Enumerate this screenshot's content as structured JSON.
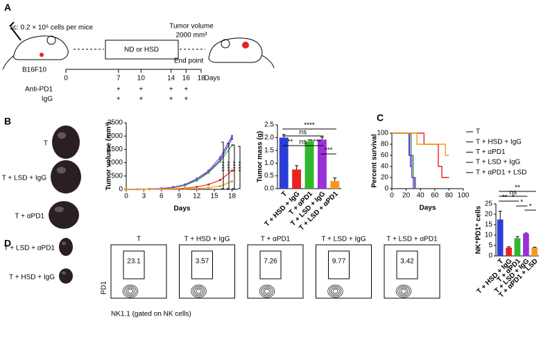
{
  "panel_a": {
    "label": "A",
    "injection": "sc: 0.2 × 10⁶ cells per mice",
    "cell_line": "B16F10",
    "diet": "ND or HSD",
    "endpoint_lines": [
      "Tumor volume",
      "2000 mm³"
    ],
    "endpoint": "End point",
    "timeline": {
      "days": [
        0,
        7,
        10,
        14,
        16,
        18
      ],
      "unit": "Days"
    },
    "treatments": [
      {
        "name": "Anti-PD1",
        "marks": [
          "+",
          "+",
          "+",
          "+"
        ]
      },
      {
        "name": "IgG",
        "marks": [
          "+",
          "+",
          "+",
          "+"
        ]
      }
    ]
  },
  "panel_b": {
    "label": "B",
    "samples": [
      "T",
      "T + LSD + IgG",
      "T + αPD1",
      "T + LSD + αPD1",
      "T + HSD + IgG"
    ]
  },
  "panel_c": {
    "label": "C"
  },
  "panel_d": {
    "label": "D",
    "y_label": "PD1",
    "x_label": "NK1.1 (gated on NK cells)",
    "plots": [
      {
        "title": "T",
        "gate": 23.1
      },
      {
        "title": "T + HSD + IgG",
        "gate": 3.57
      },
      {
        "title": "T + αPD1",
        "gate": 7.26
      },
      {
        "title": "T + LSD + IgG",
        "gate": 9.77
      },
      {
        "title": "T + LSD + αPD1",
        "gate": 3.42
      }
    ]
  },
  "chart_data": [
    {
      "type": "line",
      "y_label": "Tumor volume (mm³)",
      "x_label": "Days",
      "x": [
        0,
        2,
        4,
        6,
        8,
        10,
        12,
        14,
        16,
        18
      ],
      "xlim": [
        0,
        19
      ],
      "xticks": [
        0,
        3,
        6,
        9,
        12,
        15,
        18
      ],
      "ylim": [
        0,
        2500
      ],
      "yticks": [
        0,
        500,
        1000,
        1500,
        2000,
        2500
      ],
      "series": [
        {
          "color": "#2a3fd8",
          "values": [
            0,
            0,
            10,
            30,
            70,
            160,
            350,
            650,
            1100,
            1900
          ]
        },
        {
          "color": "#e8231f",
          "values": [
            0,
            0,
            5,
            10,
            20,
            40,
            90,
            180,
            350,
            700
          ]
        },
        {
          "color": "#2db82d",
          "values": [
            0,
            0,
            8,
            25,
            60,
            150,
            330,
            620,
            1050,
            1650
          ]
        },
        {
          "color": "#9b30d9",
          "values": [
            0,
            0,
            10,
            30,
            80,
            180,
            400,
            700,
            1200,
            2000
          ]
        },
        {
          "color": "#f39a1e",
          "values": [
            0,
            0,
            3,
            5,
            10,
            15,
            30,
            60,
            120,
            300
          ]
        }
      ],
      "annotations": [
        "****",
        "****",
        "****",
        "****"
      ]
    },
    {
      "type": "bar",
      "y_label": "Tumor mass (g)",
      "categories": [
        "T",
        "T + HSD + IgG",
        "T + αPD1",
        "T + LSD + IgG",
        "T + LSD + αPD1"
      ],
      "values": [
        2.0,
        0.75,
        1.85,
        1.92,
        0.3
      ],
      "errors": [
        0.12,
        0.15,
        0.06,
        0.1,
        0.12
      ],
      "colors": [
        "#2a3fd8",
        "#e8231f",
        "#2db82d",
        "#9b30d9",
        "#f39a1e"
      ],
      "ylim": [
        0,
        2.5
      ],
      "yticks": [
        {
          "value": 0,
          "label": "0.0"
        },
        0.5,
        {
          "value": 1,
          "label": "1.0"
        },
        1.5,
        {
          "value": 2,
          "label": "2.0"
        },
        2.5
      ],
      "annotations": [
        "****",
        "ns",
        "**",
        "ns",
        "****",
        "***"
      ]
    },
    {
      "type": "step",
      "y_label": "Percent survival",
      "x_label": "Days",
      "xlim": [
        0,
        100
      ],
      "xticks": [
        0,
        20,
        40,
        60,
        80,
        100
      ],
      "ylim": [
        0,
        100
      ],
      "yticks": [
        0,
        20,
        40,
        60,
        80,
        100
      ],
      "legend": "right",
      "series": [
        {
          "name": "T",
          "color": "#2a3fd8",
          "x": [
            0,
            24,
            26,
            28,
            30
          ],
          "values": [
            100,
            60,
            40,
            20,
            0
          ]
        },
        {
          "name": "T + HSD + IgG",
          "color": "#e8231f",
          "x": [
            0,
            45,
            65,
            70,
            80
          ],
          "values": [
            100,
            80,
            40,
            20,
            20
          ]
        },
        {
          "name": "T + αPD1",
          "color": "#2db82d",
          "x": [
            0,
            27,
            30,
            33
          ],
          "values": [
            100,
            60,
            20,
            0
          ]
        },
        {
          "name": "T + LSD + IgG",
          "color": "#9b30d9",
          "x": [
            0,
            25,
            28,
            32
          ],
          "values": [
            100,
            60,
            20,
            0
          ]
        },
        {
          "name": "T + αPD1 + LSD",
          "color": "#f39a1e",
          "x": [
            0,
            35,
            70,
            75,
            80
          ],
          "values": [
            100,
            80,
            80,
            60,
            60
          ]
        }
      ]
    },
    {
      "type": "bar",
      "y_label": "NK⁺PD1⁺ cells",
      "categories": [
        "T",
        "T + HSD + IgG",
        "T + αPD1",
        "T + LSD + IgG",
        "T + αPD1 + LSD"
      ],
      "values": [
        17.5,
        4,
        8.5,
        10.7,
        4
      ],
      "errors": [
        4,
        0.4,
        0.8,
        0.3,
        0.2
      ],
      "colors": [
        "#2a3fd8",
        "#e8231f",
        "#2db82d",
        "#9b30d9",
        "#f39a1e"
      ],
      "ylim": [
        0,
        25
      ],
      "yticks": [
        0,
        5,
        10,
        15,
        20,
        25
      ],
      "annotations": [
        "**",
        "ns",
        "**",
        "*",
        "*",
        "*"
      ]
    }
  ]
}
